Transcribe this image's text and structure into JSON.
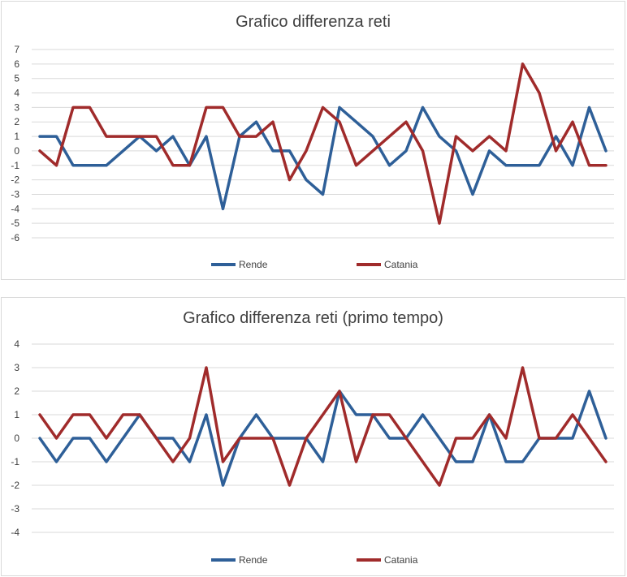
{
  "colors": {
    "rende": "#2e5f98",
    "catania": "#a02b2b",
    "grid": "#d9d9d9",
    "text": "#404040"
  },
  "chart_data": [
    {
      "type": "line",
      "title": "Grafico differenza reti",
      "ylim": [
        -6,
        7
      ],
      "yticks": [
        -6,
        -5,
        -4,
        -3,
        -2,
        -1,
        0,
        1,
        2,
        3,
        4,
        5,
        6,
        7
      ],
      "grid": true,
      "legend": "bottom",
      "series": [
        {
          "name": "Rende",
          "color": "#2e5f98",
          "values": [
            1,
            1,
            -1,
            -1,
            -1,
            0,
            1,
            0,
            1,
            -1,
            1,
            -4,
            1,
            2,
            0,
            0,
            -2,
            -3,
            3,
            2,
            1,
            -1,
            0,
            3,
            1,
            0,
            -3,
            0,
            -1,
            -1,
            -1,
            1,
            -1,
            3,
            0
          ]
        },
        {
          "name": "Catania",
          "color": "#a02b2b",
          "values": [
            0,
            -1,
            3,
            3,
            1,
            1,
            1,
            1,
            -1,
            -1,
            3,
            3,
            1,
            1,
            2,
            -2,
            0,
            3,
            2,
            -1,
            0,
            1,
            2,
            0,
            -5,
            1,
            0,
            1,
            0,
            6,
            4,
            0,
            2,
            -1,
            -1
          ]
        }
      ]
    },
    {
      "type": "line",
      "title": "Grafico differenza reti (primo tempo)",
      "ylim": [
        -4,
        4
      ],
      "yticks": [
        -4,
        -3,
        -2,
        -1,
        0,
        1,
        2,
        3,
        4
      ],
      "grid": true,
      "legend": "bottom",
      "series": [
        {
          "name": "Rende",
          "color": "#2e5f98",
          "values": [
            0,
            -1,
            0,
            0,
            -1,
            0,
            1,
            0,
            0,
            -1,
            1,
            -2,
            0,
            1,
            0,
            0,
            0,
            -1,
            2,
            1,
            1,
            0,
            0,
            1,
            0,
            -1,
            -1,
            1,
            -1,
            -1,
            0,
            0,
            0,
            2,
            0
          ]
        },
        {
          "name": "Catania",
          "color": "#a02b2b",
          "values": [
            1,
            0,
            1,
            1,
            0,
            1,
            1,
            0,
            -1,
            0,
            3,
            -1,
            0,
            0,
            0,
            -2,
            0,
            1,
            2,
            -1,
            1,
            1,
            0,
            -1,
            -2,
            0,
            0,
            1,
            0,
            3,
            0,
            0,
            1,
            0,
            -1
          ]
        }
      ]
    }
  ]
}
